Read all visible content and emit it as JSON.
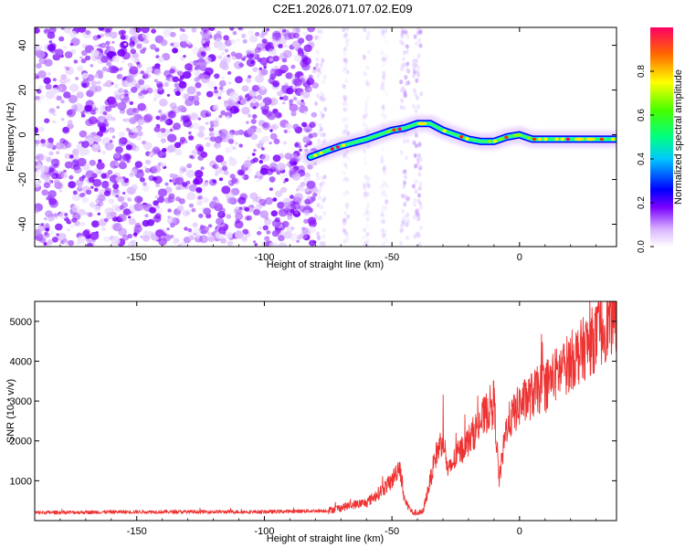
{
  "title": "C2E1.2026.071.07.02.E09",
  "chart_data": [
    {
      "type": "heatmap",
      "title": "C2E1.2026.071.07.02.E09",
      "xlabel": "Height of straight line (km)",
      "ylabel": "Frequency (Hz)",
      "xlim": [
        -190,
        38
      ],
      "ylim": [
        -50,
        48
      ],
      "xticks": [
        -150,
        -100,
        -50,
        0
      ],
      "yticks": [
        -40,
        -20,
        0,
        20,
        40
      ],
      "noise_region_x": [
        -190,
        -80
      ],
      "signal_track": {
        "x": [
          -82,
          -75,
          -70,
          -60,
          -50,
          -45,
          -40,
          -35,
          -30,
          -25,
          -20,
          -15,
          -10,
          -5,
          0,
          5,
          10,
          20,
          30,
          38
        ],
        "frequency_hz": [
          -10,
          -7,
          -5,
          -2,
          2,
          3,
          5,
          5,
          2,
          0,
          -2,
          -3,
          -3,
          -1,
          0,
          -2,
          -2,
          -2,
          -2,
          -2
        ]
      },
      "colorbar": {
        "label": "Normalized spectral amplitude",
        "range": [
          0,
          1
        ],
        "ticks": [
          0.0,
          0.2,
          0.4,
          0.6,
          0.8
        ]
      }
    },
    {
      "type": "line",
      "title": "",
      "xlabel": "Height of straight line (km)",
      "ylabel": "SNR (10 * v/v)",
      "xlim": [
        -190,
        38
      ],
      "ylim": [
        0,
        5500
      ],
      "xticks": [
        -150,
        -100,
        -50,
        0
      ],
      "yticks": [
        1000,
        2000,
        3000,
        4000,
        5000
      ],
      "series": [
        {
          "name": "SNR",
          "color": "#ee3333",
          "x": [
            -190,
            -150,
            -100,
            -75,
            -65,
            -60,
            -55,
            -50,
            -47,
            -45,
            -42,
            -38,
            -35,
            -33,
            -30,
            -28,
            -25,
            -20,
            -15,
            -10,
            -8,
            -5,
            0,
            10,
            20,
            30,
            38
          ],
          "values": [
            200,
            220,
            220,
            250,
            400,
            450,
            700,
            1000,
            1400,
            500,
            200,
            200,
            1000,
            1600,
            2100,
            1200,
            1600,
            2000,
            2500,
            3000,
            1000,
            2400,
            2900,
            3400,
            4000,
            4600,
            5200
          ]
        }
      ]
    }
  ]
}
